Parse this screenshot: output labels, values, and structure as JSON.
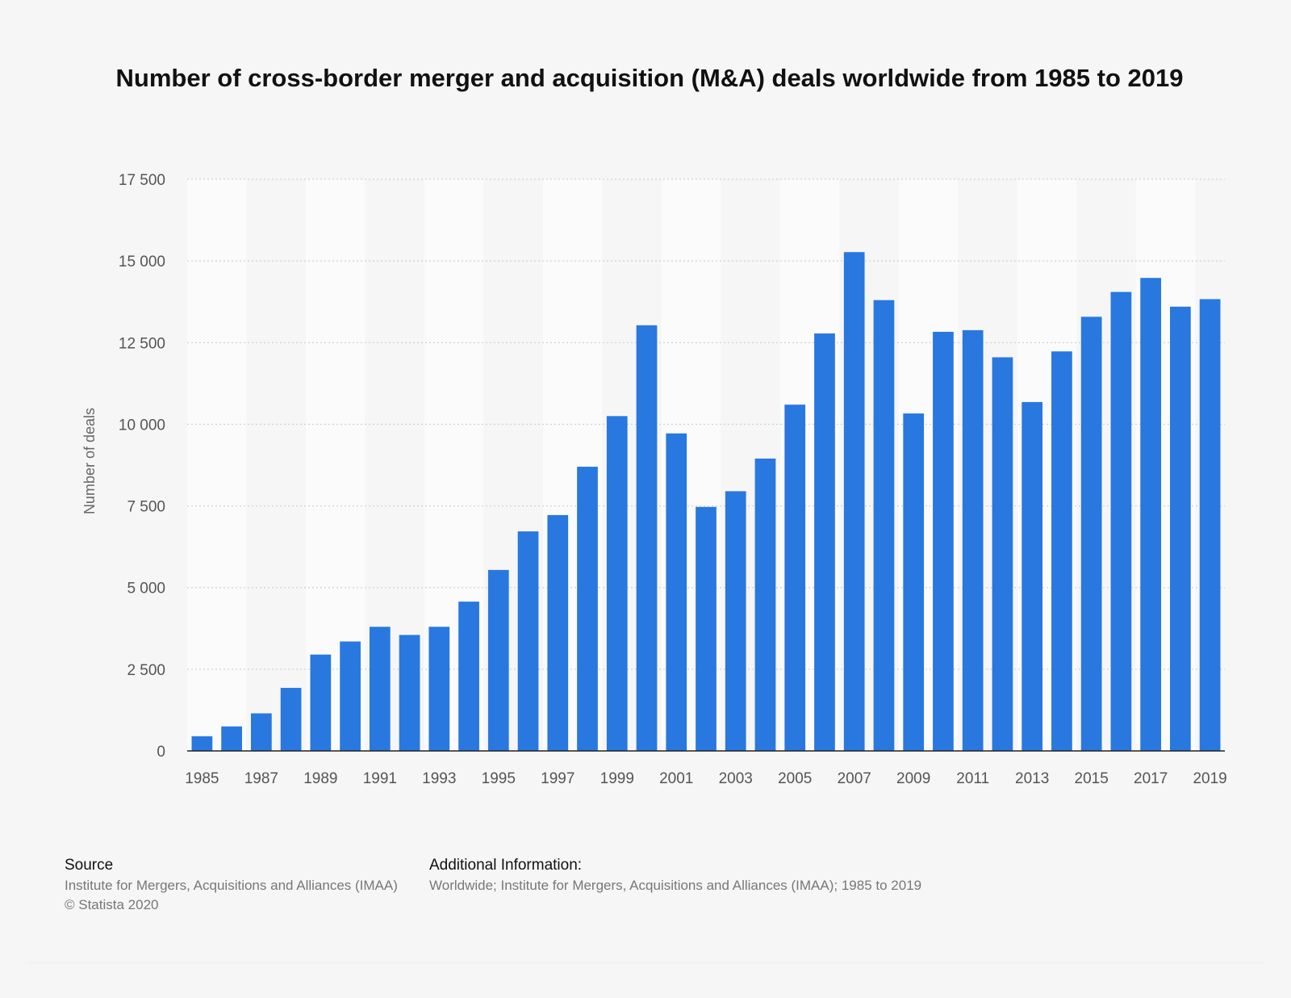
{
  "chart_data": {
    "type": "bar",
    "title": "Number of cross-border merger and acquisition (M&A) deals worldwide from 1985 to 2019",
    "xlabel": "",
    "ylabel": "Number of deals",
    "ylim": [
      0,
      17500
    ],
    "yticks": [
      0,
      2500,
      5000,
      7500,
      10000,
      12500,
      15000,
      17500
    ],
    "ytick_labels": [
      "0",
      "2 500",
      "5 000",
      "7 500",
      "10 000",
      "12 500",
      "15 000",
      "17 500"
    ],
    "categories": [
      "1985",
      "1986",
      "1987",
      "1988",
      "1989",
      "1990",
      "1991",
      "1992",
      "1993",
      "1994",
      "1995",
      "1996",
      "1997",
      "1998",
      "1999",
      "2000",
      "2001",
      "2002",
      "2003",
      "2004",
      "2005",
      "2006",
      "2007",
      "2008",
      "2009",
      "2010",
      "2011",
      "2012",
      "2013",
      "2014",
      "2015",
      "2016",
      "2017",
      "2018",
      "2019"
    ],
    "xtick_labels": [
      "1985",
      "1987",
      "1989",
      "1991",
      "1993",
      "1995",
      "1997",
      "1999",
      "2001",
      "2003",
      "2005",
      "2007",
      "2009",
      "2011",
      "2013",
      "2015",
      "2017",
      "2019"
    ],
    "values": [
      450,
      750,
      1150,
      1930,
      2950,
      3350,
      3800,
      3550,
      3800,
      4570,
      5540,
      6720,
      7220,
      8700,
      10250,
      13030,
      9720,
      7470,
      7950,
      8950,
      10600,
      12780,
      15270,
      13800,
      10330,
      12830,
      12880,
      12050,
      10680,
      12230,
      13290,
      14050,
      14480,
      13600,
      13830
    ],
    "grid": true,
    "legend": "none",
    "colors": {
      "bar": "#2878e0",
      "grid": "#c8c8c8",
      "band": "#fbfbfb",
      "axis": "#222222"
    }
  },
  "footer": {
    "source_heading": "Source",
    "source_text": "Institute for Mergers, Acquisitions and Alliances (IMAA)",
    "copyright": "© Statista 2020",
    "info_heading": "Additional Information:",
    "info_text": "Worldwide; Institute for Mergers, Acquisitions and Alliances (IMAA); 1985 to 2019"
  }
}
